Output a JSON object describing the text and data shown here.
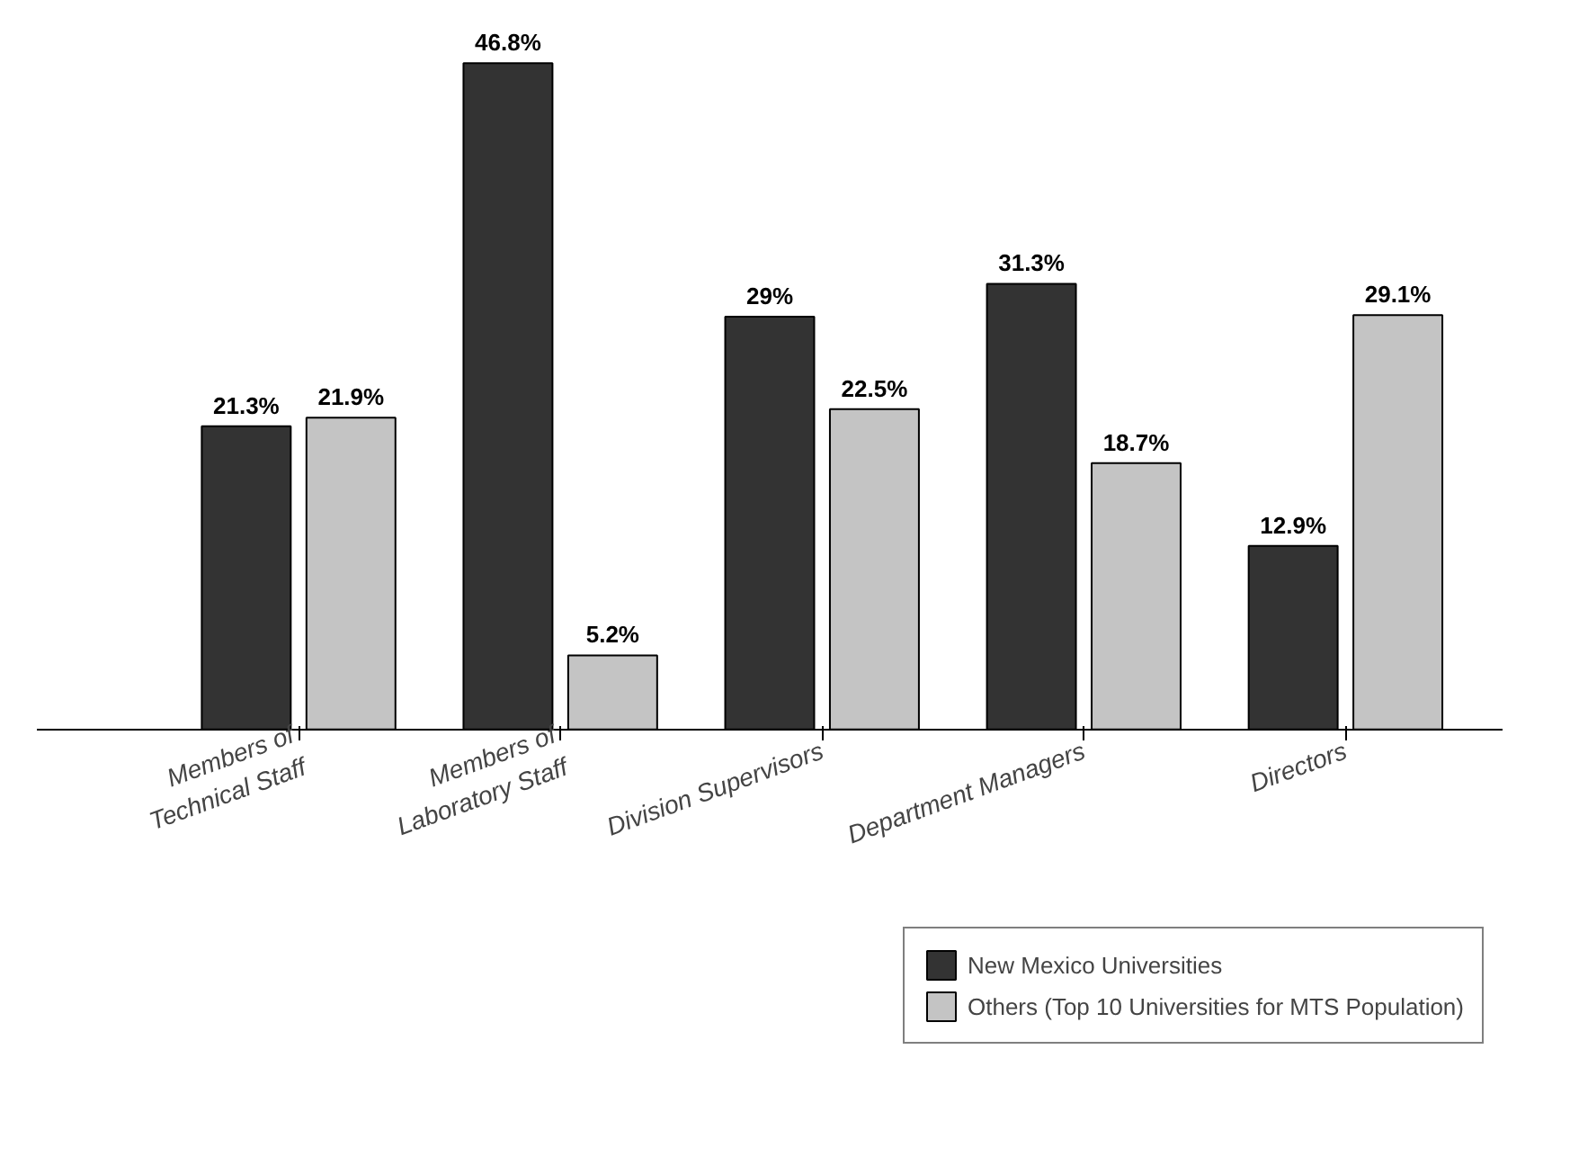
{
  "chart_data": {
    "type": "bar",
    "categories": [
      "Members of Technical Staff",
      "Members of Laboratory Staff",
      "Division Supervisors",
      "Department Managers",
      "Directors"
    ],
    "series": [
      {
        "name": "New Mexico Universities",
        "color": "#333333",
        "values": [
          21.3,
          46.8,
          29,
          31.3,
          12.9
        ],
        "value_labels": [
          "21.3%",
          "46.8%",
          "29%",
          "31.3%",
          "12.9%"
        ]
      },
      {
        "name": "Others (Top 10 Universities for MTS Population)",
        "color": "#c4c4c4",
        "values": [
          21.9,
          5.2,
          22.5,
          18.7,
          29.1
        ],
        "value_labels": [
          "21.9%",
          "5.2%",
          "22.5%",
          "18.7%",
          "29.1%"
        ]
      }
    ],
    "tick_labels": "x",
    "grid": false,
    "legend": "bottom right"
  }
}
